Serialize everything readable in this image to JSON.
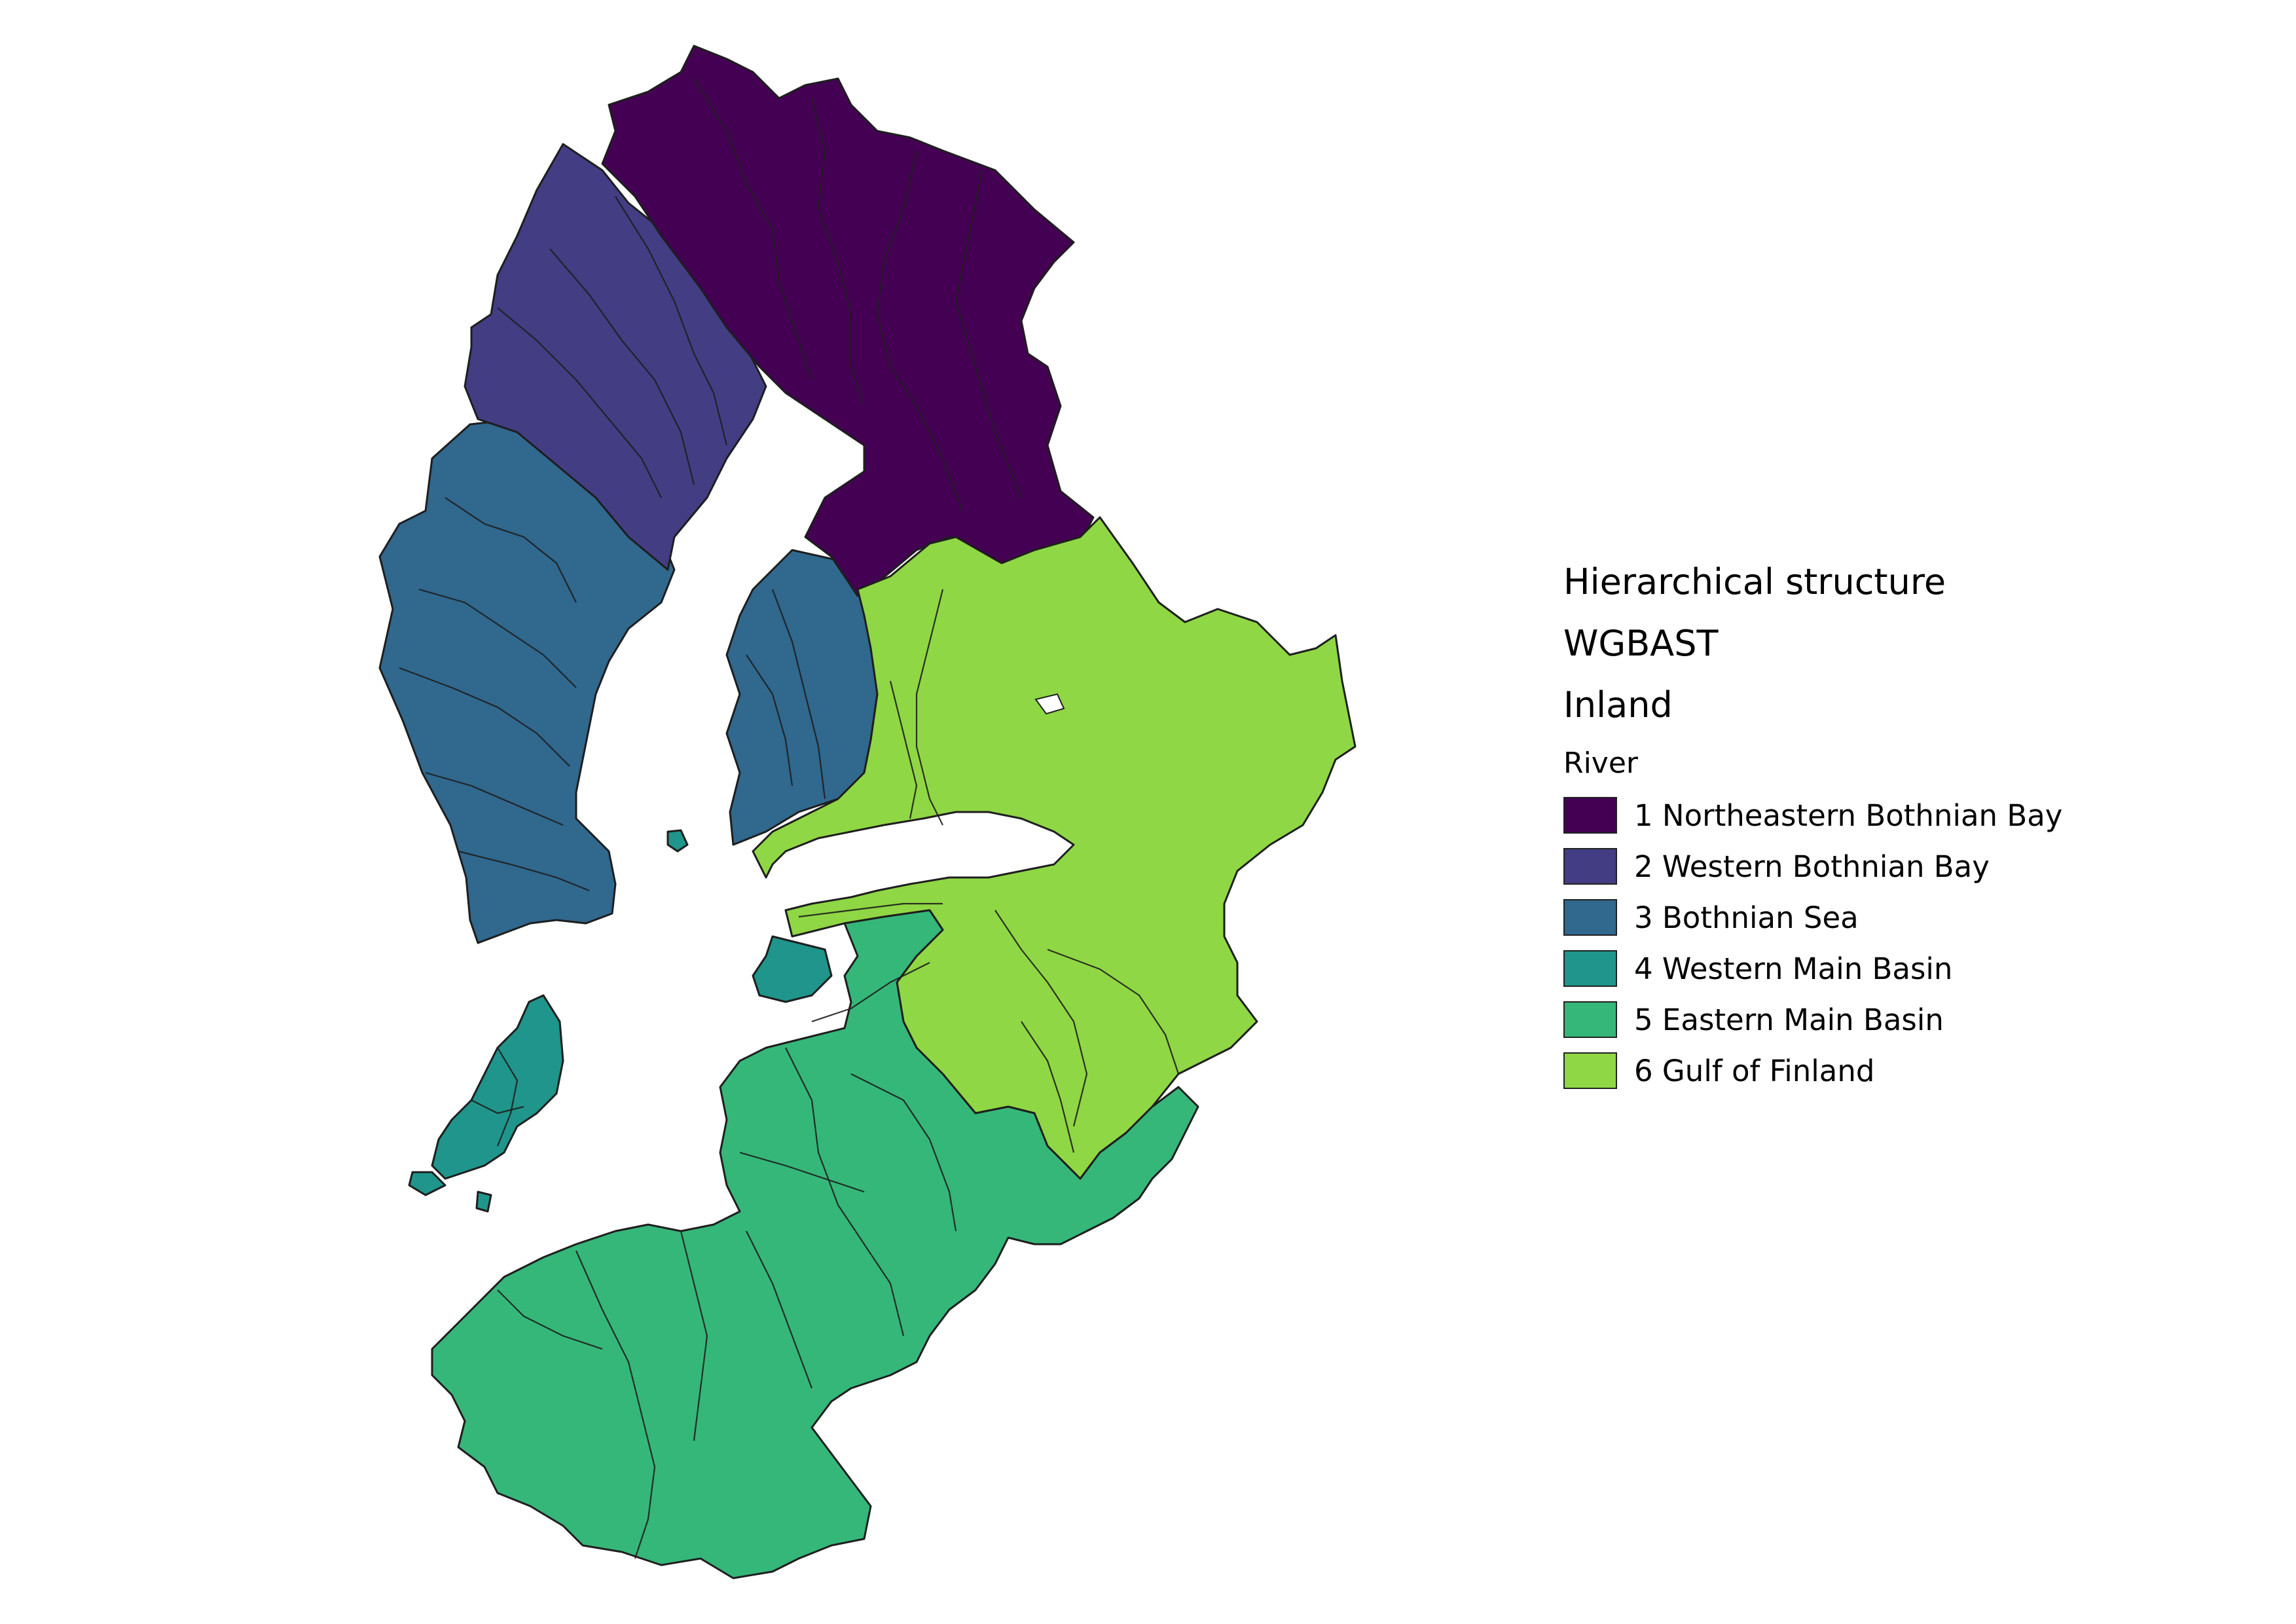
{
  "legend": {
    "headings": [
      "Hierarchical structure",
      "WGBAST",
      "Inland"
    ],
    "group_title": "River",
    "items": [
      {
        "label": "1 Northeastern Bothnian Bay",
        "color": "#440154"
      },
      {
        "label": "2 Western Bothnian Bay",
        "color": "#433d84"
      },
      {
        "label": "3 Bothnian Sea",
        "color": "#30688e"
      },
      {
        "label": "4 Western Main Basin",
        "color": "#1f958b"
      },
      {
        "label": "5 Eastern Main Basin",
        "color": "#35b779"
      },
      {
        "label": "6 Gulf of Finland",
        "color": "#8fd744"
      }
    ]
  }
}
